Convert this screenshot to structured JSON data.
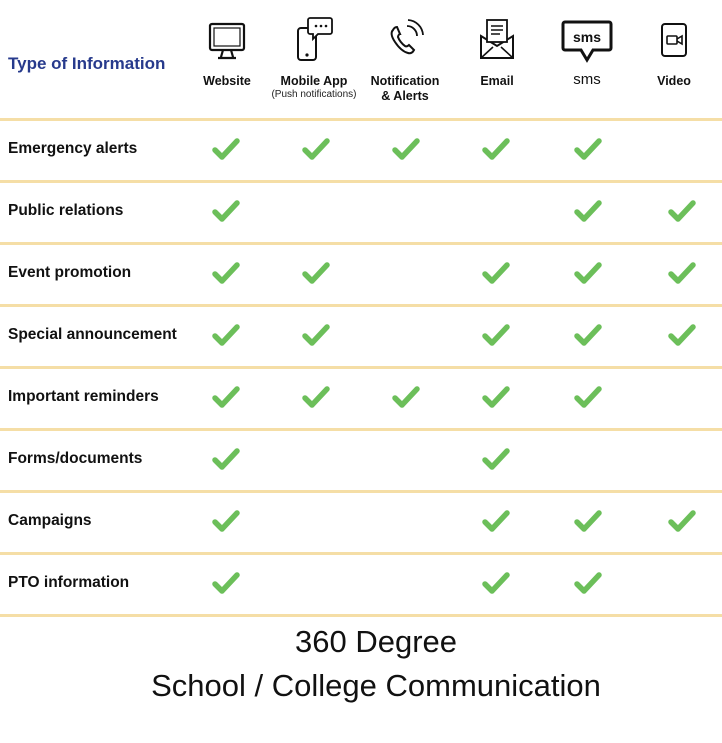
{
  "table": {
    "type_heading": "Type of Information",
    "channels": [
      {
        "key": "website",
        "label": "Website",
        "sub": "",
        "icon": "monitor-icon"
      },
      {
        "key": "mobile",
        "label": "Mobile App",
        "sub": "(Push notifications)",
        "icon": "mobile-chat-icon"
      },
      {
        "key": "notification",
        "label": "Notification",
        "label2": "& Alerts",
        "sub": "",
        "icon": "phone-ringing-icon"
      },
      {
        "key": "email",
        "label": "Email",
        "sub": "",
        "icon": "envelope-letter-icon"
      },
      {
        "key": "sms",
        "label": "sms",
        "sub": "",
        "icon": "sms-bubble-icon",
        "icon_text": "sms"
      },
      {
        "key": "video",
        "label": "Video",
        "sub": "",
        "icon": "video-camera-icon"
      }
    ],
    "rows": [
      {
        "label": "Emergency alerts",
        "checks": [
          true,
          true,
          true,
          true,
          true,
          false
        ]
      },
      {
        "label": "Public relations",
        "checks": [
          true,
          false,
          false,
          false,
          true,
          true
        ]
      },
      {
        "label": "Event promotion",
        "checks": [
          true,
          true,
          false,
          true,
          true,
          true
        ]
      },
      {
        "label": "Special announcement",
        "checks": [
          true,
          true,
          false,
          true,
          true,
          true
        ]
      },
      {
        "label": "Important reminders",
        "checks": [
          true,
          true,
          true,
          true,
          true,
          false
        ]
      },
      {
        "label": "Forms/documents",
        "checks": [
          true,
          false,
          false,
          true,
          false,
          false
        ]
      },
      {
        "label": "Campaigns",
        "checks": [
          true,
          false,
          false,
          true,
          true,
          true
        ]
      },
      {
        "label": "PTO information",
        "checks": [
          true,
          false,
          false,
          true,
          true,
          false
        ]
      }
    ],
    "check_color": "#6cbf5a",
    "divider_color": "#f5dea6",
    "heading_color": "#273a8c"
  },
  "caption": {
    "line1": "360 Degree",
    "line2": "School / College Communication"
  }
}
